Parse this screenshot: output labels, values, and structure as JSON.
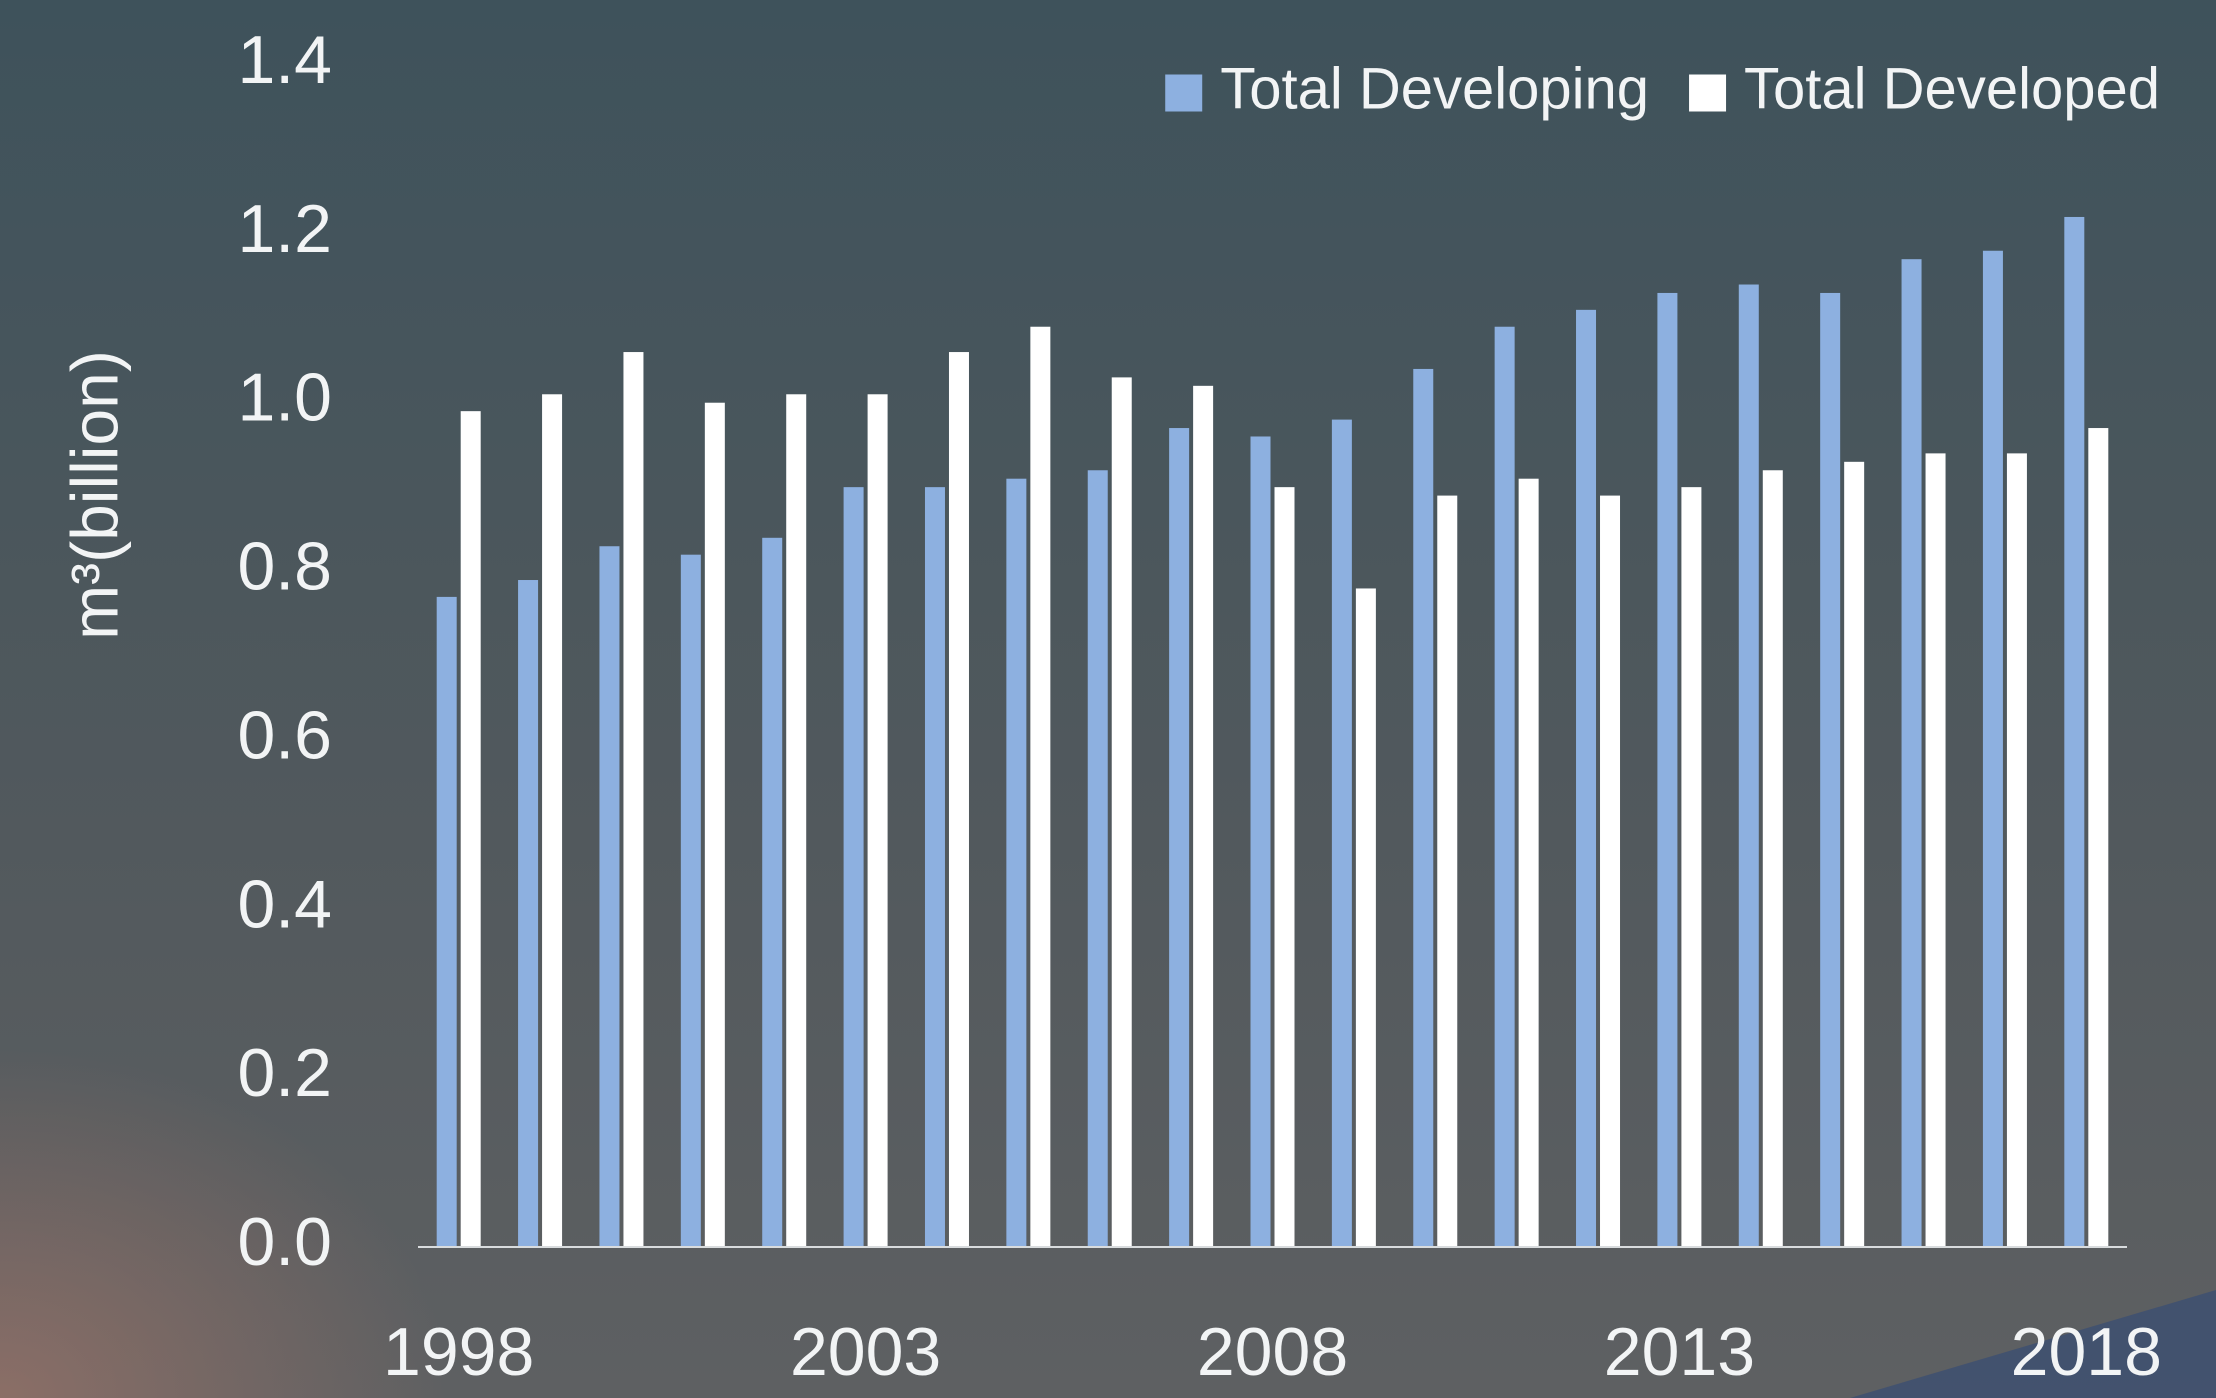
{
  "chart_data": {
    "type": "bar",
    "y_label": "m³(billion)",
    "categories": [
      "1998",
      null,
      null,
      null,
      null,
      "2003",
      null,
      null,
      null,
      null,
      "2008",
      null,
      null,
      null,
      null,
      "2013",
      null,
      null,
      null,
      null,
      "2018"
    ],
    "series": [
      {
        "name": "Total Developing",
        "color": "#8db0e0",
        "values": [
          0.77,
          0.79,
          0.83,
          0.82,
          0.84,
          0.9,
          0.9,
          0.91,
          0.92,
          0.97,
          0.96,
          0.98,
          1.04,
          1.09,
          1.11,
          1.13,
          1.14,
          1.13,
          1.17,
          1.18,
          1.22
        ]
      },
      {
        "name": "Total Developed",
        "color": "#ffffff",
        "values": [
          0.99,
          1.01,
          1.06,
          1.0,
          1.01,
          1.01,
          1.06,
          1.09,
          1.03,
          1.02,
          0.9,
          0.78,
          0.89,
          0.91,
          0.89,
          0.9,
          0.92,
          0.93,
          0.94,
          0.94,
          0.97
        ]
      }
    ],
    "ylim": [
      0,
      1.4
    ],
    "yticks": [
      {
        "value": 0,
        "label": "0.0"
      },
      0.2,
      0.4,
      0.6,
      0.8,
      {
        "value": 1,
        "label": "1.0"
      },
      1.2,
      1.4
    ],
    "grid": false,
    "legend": "upper right"
  }
}
